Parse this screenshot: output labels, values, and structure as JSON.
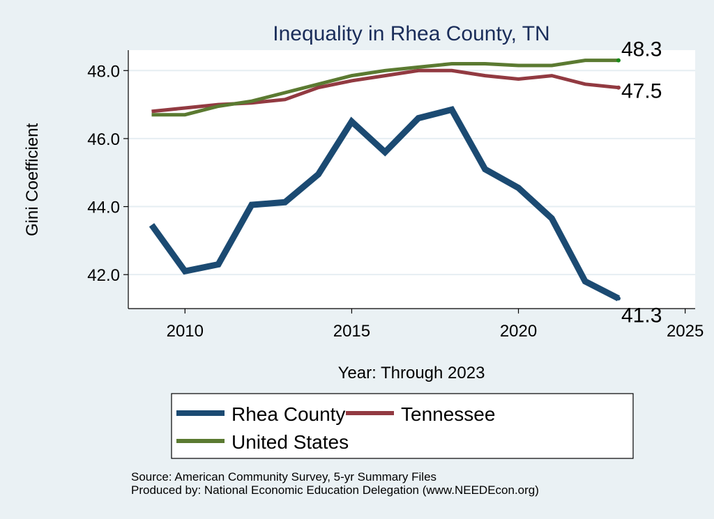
{
  "chart_data": {
    "type": "line",
    "title": "Inequality in Rhea County, TN",
    "xlabel": "Year: Through 2023",
    "ylabel": "Gini Coefficient",
    "xlim": [
      2008.3,
      2025.3
    ],
    "ylim": [
      41.0,
      48.6
    ],
    "xticks": [
      2010,
      2015,
      2020,
      2025
    ],
    "yticks": [
      42.0,
      44.0,
      46.0,
      48.0
    ],
    "ytick_labels": [
      "42.0",
      "44.0",
      "46.0",
      "48.0"
    ],
    "xtick_labels": [
      "2010",
      "2015",
      "2020",
      "2025"
    ],
    "grid": true,
    "x": [
      2009,
      2010,
      2011,
      2012,
      2013,
      2014,
      2015,
      2016,
      2017,
      2018,
      2019,
      2020,
      2021,
      2022,
      2023
    ],
    "series": [
      {
        "name": "Rhea County",
        "color": "#1b4a72",
        "values": [
          43.46,
          42.1,
          42.3,
          44.05,
          44.13,
          44.95,
          46.5,
          45.6,
          46.6,
          46.85,
          45.1,
          44.55,
          43.65,
          41.8,
          41.3
        ],
        "end_label": "41.3"
      },
      {
        "name": "Tennessee",
        "color": "#923a41",
        "values": [
          46.8,
          46.9,
          47.0,
          47.05,
          47.15,
          47.5,
          47.7,
          47.85,
          48.0,
          48.0,
          47.85,
          47.75,
          47.85,
          47.6,
          47.5
        ],
        "end_label": "47.5"
      },
      {
        "name": "United States",
        "color": "#5b7a31",
        "values": [
          46.7,
          46.7,
          46.95,
          47.1,
          47.35,
          47.6,
          47.85,
          48.0,
          48.1,
          48.2,
          48.2,
          48.15,
          48.15,
          48.3,
          48.3
        ],
        "end_label": "48.3"
      }
    ],
    "legend": {
      "placement": "bottom",
      "entries": [
        "Rhea County",
        "Tennessee",
        "United States"
      ]
    },
    "notes": [
      "Source: American Community Survey, 5-yr Summary Files",
      "Produced by: National Economic Education Delegation (www.NEEDEcon.org)"
    ]
  }
}
